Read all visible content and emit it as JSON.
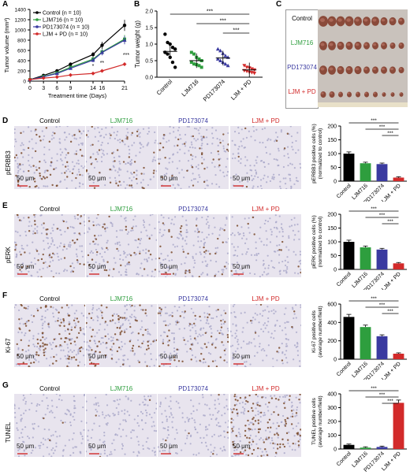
{
  "panel_letters": [
    "A",
    "B",
    "C",
    "D",
    "E",
    "F",
    "G"
  ],
  "colors": {
    "control": "#000000",
    "ljm716": "#2e9e3e",
    "pd173074": "#3a3aa0",
    "ljm_pd": "#d22a2a",
    "tissue_bg": "#e8e4ee",
    "tumor": "#8a4a3a"
  },
  "groups": [
    "Control",
    "LJM716",
    "PD173074",
    "LJM + PD"
  ],
  "panel_a": {
    "legend": [
      "Control (n = 10)",
      "LJM716 (n = 10)",
      "PD173074 (n = 10)",
      "LJM + PD (n = 10)"
    ]
  },
  "panel_c": {
    "labels": [
      "Control",
      "LJM716",
      "PD173074",
      "LJM + PD"
    ]
  },
  "rows": [
    {
      "label": "pERBB3",
      "col_heads": [
        "Control",
        "LJM716",
        "PD173074",
        "LJM + PD"
      ],
      "scale": "50 μm"
    },
    {
      "label": "pERK",
      "col_heads": [
        "Control",
        "LJM716",
        "PD173074",
        "LJM + PD"
      ],
      "scale": "50 μm"
    },
    {
      "label": "Ki-67",
      "col_heads": [
        "Control",
        "LJM716",
        "PD173074",
        "LJM + PD"
      ],
      "scale": "50 μm"
    },
    {
      "label": "TUNEL",
      "col_heads": [
        "Control",
        "LJM716",
        "PD173074",
        "LJM + PD"
      ],
      "scale": "50 μm"
    }
  ],
  "chart_data": [
    {
      "type": "line",
      "panel": "A",
      "xlabel": "Treatment time (Days)",
      "ylabel": "Tumor volume (mm³)",
      "x": [
        0,
        3,
        6,
        9,
        14,
        16,
        21
      ],
      "xticks": [
        "0",
        "3",
        "6",
        "9",
        "14",
        "16",
        "21"
      ],
      "yticks": [
        "0",
        "200",
        "400",
        "600",
        "800",
        "1000",
        "1200",
        "1400"
      ],
      "ylim": [
        0,
        1400
      ],
      "series": [
        {
          "name": "Control (n = 10)",
          "values": [
            30,
            110,
            200,
            330,
            520,
            700,
            1090
          ]
        },
        {
          "name": "LJM716 (n = 10)",
          "values": [
            30,
            90,
            160,
            270,
            430,
            570,
            820
          ]
        },
        {
          "name": "PD173074 (n = 10)",
          "values": [
            30,
            85,
            150,
            250,
            410,
            560,
            800
          ]
        },
        {
          "name": "LJM + PD (n = 10)",
          "values": [
            30,
            60,
            80,
            120,
            150,
            200,
            330
          ]
        }
      ],
      "annotations": [
        "*",
        "**",
        "***"
      ]
    },
    {
      "type": "scatter",
      "panel": "B",
      "ylabel": "Tumor weight (g)",
      "categories": [
        "Control",
        "LJM716",
        "PD173074",
        "LJM + PD"
      ],
      "yticks": [
        "0.0",
        "0.5",
        "1.0",
        "1.5",
        "2.0"
      ],
      "ylim": [
        0,
        2.0
      ],
      "means": [
        0.78,
        0.5,
        0.58,
        0.22
      ],
      "points": [
        [
          1.3,
          1.05,
          1.0,
          0.9,
          0.85,
          0.75,
          0.7,
          0.6,
          0.45,
          0.3
        ],
        [
          0.75,
          0.7,
          0.6,
          0.55,
          0.5,
          0.45,
          0.4,
          0.38,
          0.35,
          0.3
        ],
        [
          0.85,
          0.8,
          0.72,
          0.65,
          0.6,
          0.55,
          0.5,
          0.45,
          0.4,
          0.35
        ],
        [
          0.35,
          0.3,
          0.28,
          0.25,
          0.22,
          0.2,
          0.18,
          0.15,
          0.14,
          0.12
        ]
      ],
      "significance": [
        "***",
        "***",
        "***"
      ]
    },
    {
      "type": "bar",
      "panel": "D",
      "ylabel": "pERBB3 positive cells (%) (normalized to control)",
      "ylabel_lines": [
        "pERBB3 positive cells (%)",
        "(normalized to control)"
      ],
      "categories": [
        "Control",
        "LJM716",
        "PD173074",
        "LJM + PD"
      ],
      "values": [
        100,
        65,
        62,
        13
      ],
      "yticks": [
        "0",
        "50",
        "100",
        "150",
        "200"
      ],
      "ylim": [
        0,
        200
      ],
      "significance": [
        "***",
        "***",
        "***"
      ]
    },
    {
      "type": "bar",
      "panel": "E",
      "ylabel": "pERK positive cells (%) (normalized to control)",
      "ylabel_lines": [
        "pERK positive cells (%)",
        "(normalized to control)"
      ],
      "categories": [
        "Control",
        "LJM716",
        "PD173074",
        "LJM + PD"
      ],
      "values": [
        100,
        80,
        72,
        22
      ],
      "yticks": [
        "0",
        "50",
        "100",
        "150",
        "200"
      ],
      "ylim": [
        0,
        200
      ],
      "significance": [
        "***",
        "***",
        "***"
      ]
    },
    {
      "type": "bar",
      "panel": "F",
      "ylabel": "Ki-67 positive cells (average number/field)",
      "ylabel_lines": [
        "Ki-67 positive cells",
        "(average number/field)"
      ],
      "categories": [
        "Control",
        "LJM716",
        "PD173074",
        "LJM + PD"
      ],
      "values": [
        460,
        350,
        250,
        60
      ],
      "yticks": [
        "0",
        "200",
        "400",
        "600"
      ],
      "ylim": [
        0,
        600
      ],
      "significance": [
        "***",
        "***",
        "***"
      ]
    },
    {
      "type": "bar",
      "panel": "G",
      "ylabel": "TUNEL positive cells (average number/field)",
      "ylabel_lines": [
        "TUNEL positive cells",
        "(average number/field)"
      ],
      "categories": [
        "Control",
        "LJM716",
        "PD173074",
        "LJM + PD"
      ],
      "values": [
        30,
        10,
        15,
        335
      ],
      "yticks": [
        "0",
        "100",
        "200",
        "300",
        "400"
      ],
      "ylim": [
        0,
        400
      ],
      "significance": [
        "***",
        "***",
        "***"
      ]
    }
  ]
}
